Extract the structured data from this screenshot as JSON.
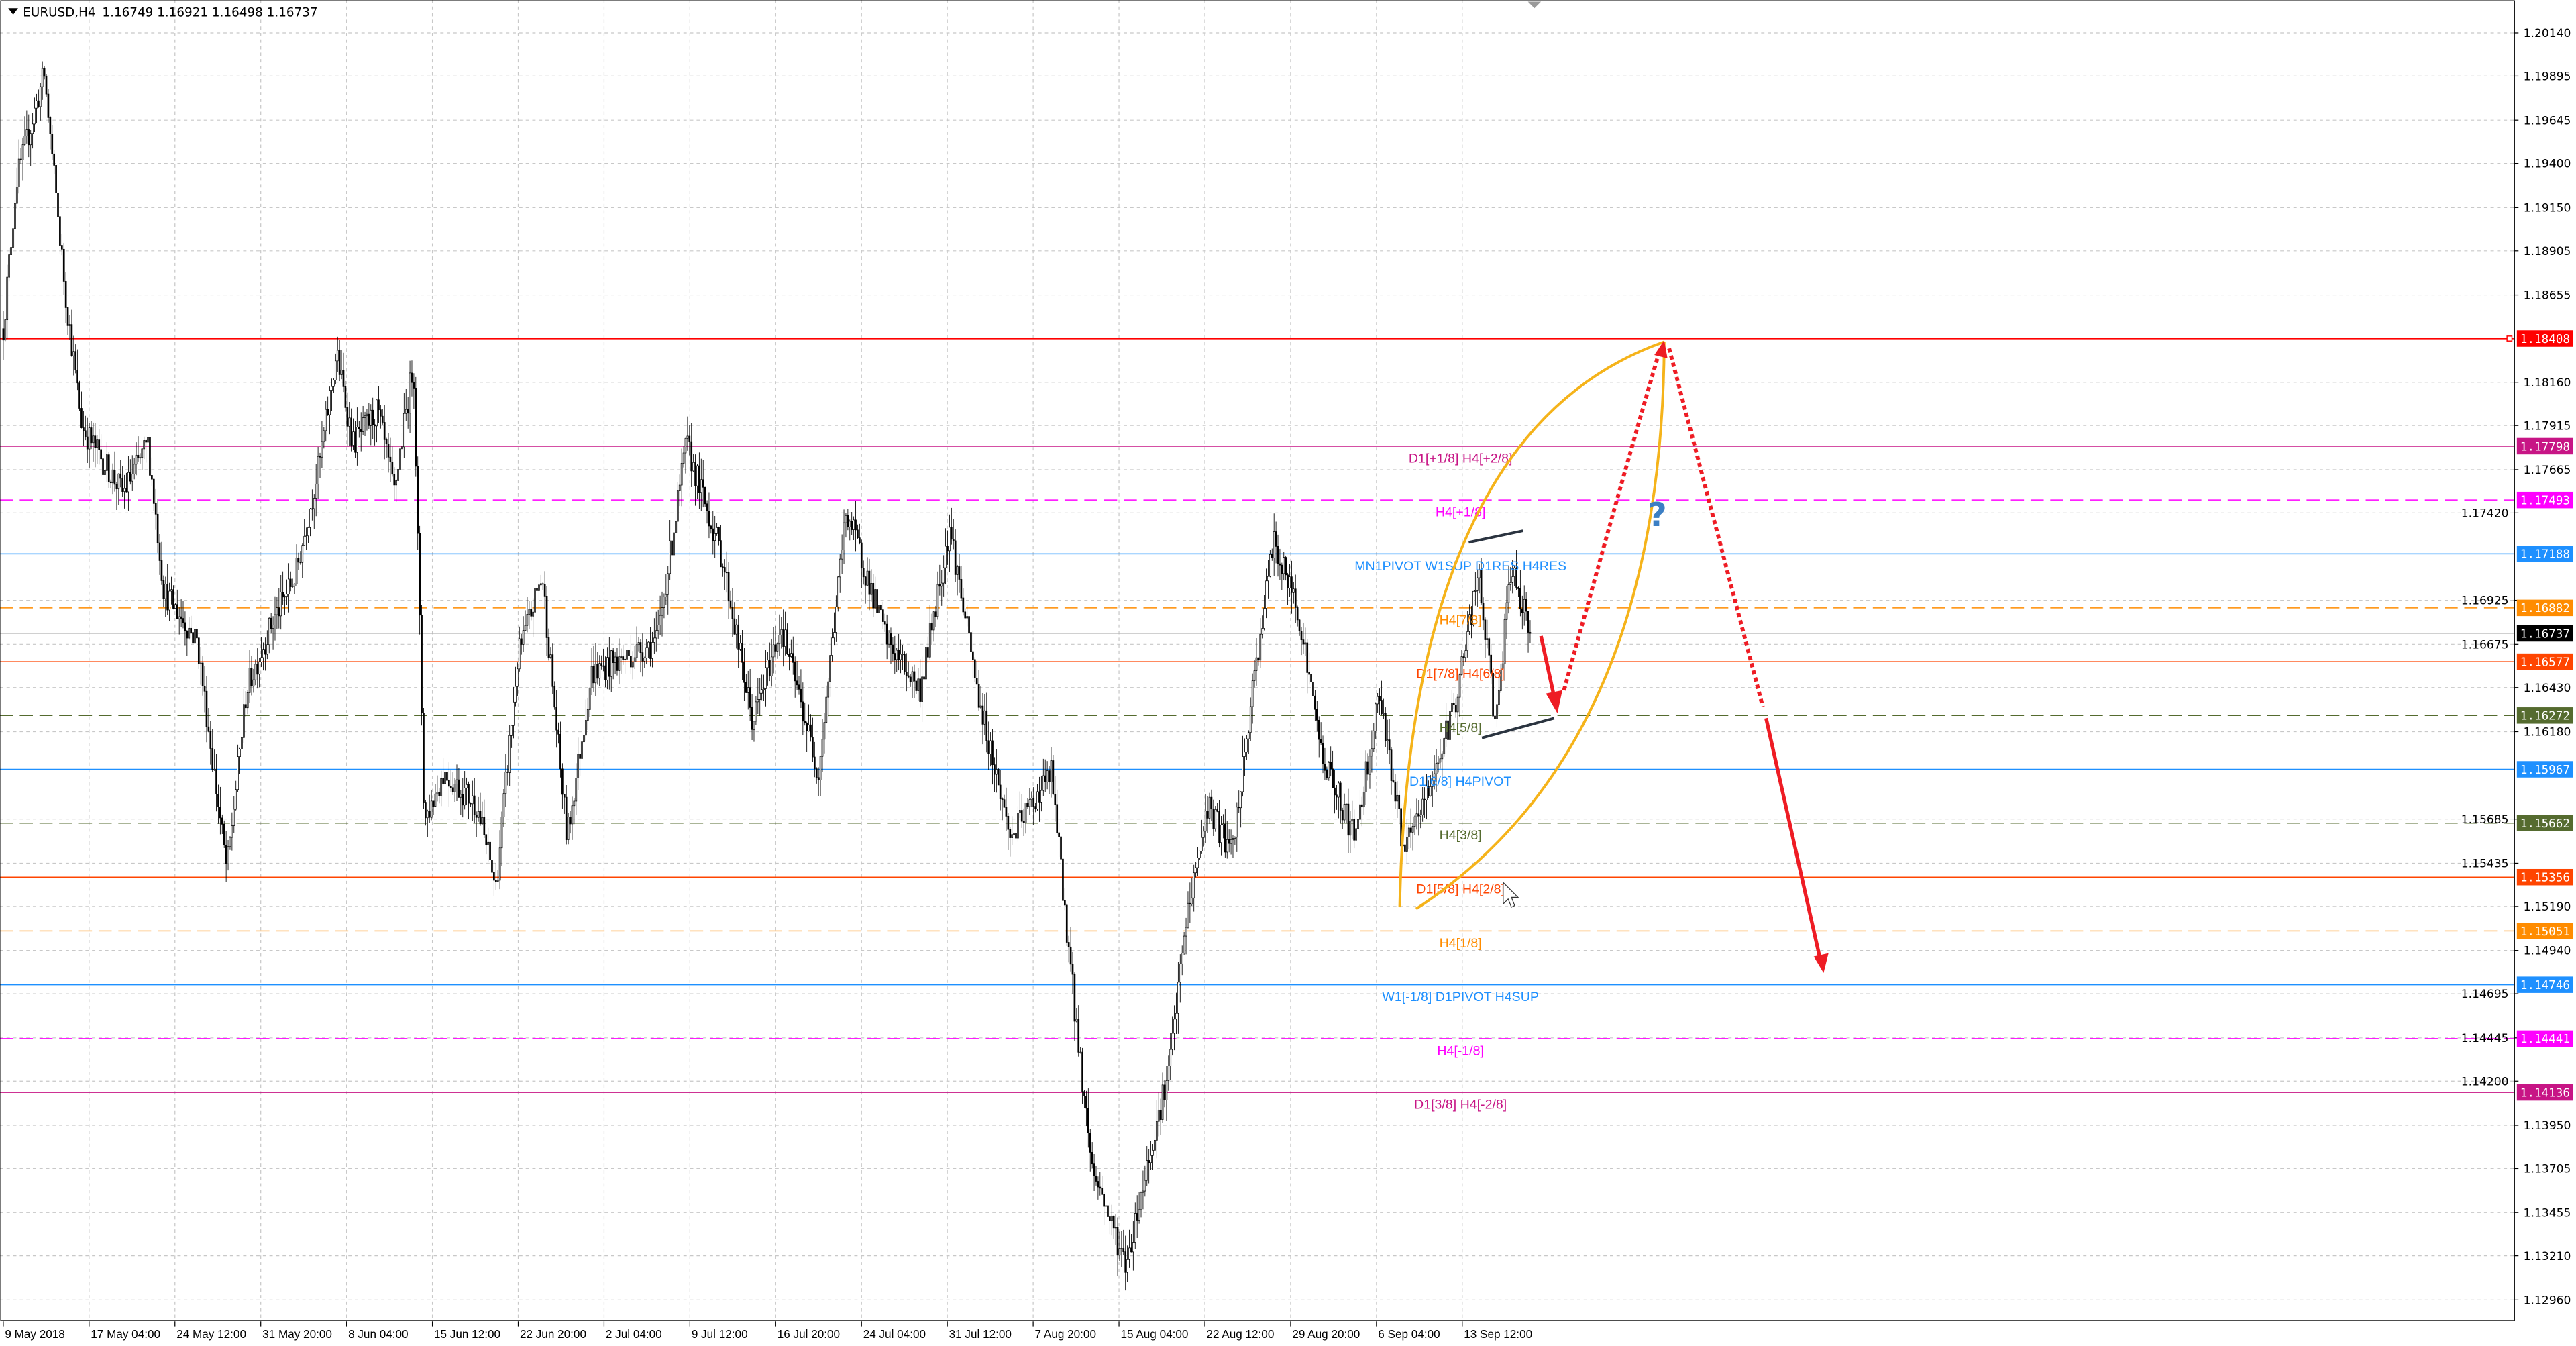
{
  "header": {
    "symbol": "EURUSD,H4",
    "ohlc": "1.16749 1.16921 1.16498 1.16737",
    "menu_icon": "triangle-down-icon"
  },
  "chart_data": {
    "type": "candlestick",
    "symbol": "EURUSD",
    "timeframe": "H4",
    "ylim": [
      1.1296,
      1.2014
    ],
    "price_ticks": [
      "1.20140",
      "1.19895",
      "1.19645",
      "1.19400",
      "1.19150",
      "1.18905",
      "1.18655",
      "1.18160",
      "1.17915",
      "1.17665",
      "1.17420",
      "1.16925",
      "1.16675",
      "1.16430",
      "1.16180",
      "1.15685",
      "1.15435",
      "1.15190",
      "1.14940",
      "1.14695",
      "1.14445",
      "1.14200",
      "1.13950",
      "1.13705",
      "1.13455",
      "1.13210",
      "1.12960"
    ],
    "time_ticks": [
      "9 May 2018",
      "17 May 04:00",
      "24 May 12:00",
      "31 May 20:00",
      "8 Jun 04:00",
      "15 Jun 12:00",
      "22 Jun 20:00",
      "2 Jul 04:00",
      "9 Jul 12:00",
      "16 Jul 20:00",
      "24 Jul 04:00",
      "31 Jul 12:00",
      "7 Aug 20:00",
      "15 Aug 04:00",
      "22 Aug 12:00",
      "29 Aug 20:00",
      "6 Sep 04:00",
      "13 Sep 12:00"
    ],
    "grid": true,
    "current_price": {
      "value": "1.16737",
      "color": "#000000"
    },
    "price_path": [
      [
        "2018-05-09T00:00",
        1.18464
      ],
      [
        "2018-05-10T03:00",
        1.19302
      ],
      [
        "2018-05-12T12:00",
        1.19907
      ],
      [
        "2018-05-14T08:00",
        1.1865
      ],
      [
        "2018-05-15T18:00",
        1.17905
      ],
      [
        "2018-05-19T06:00",
        1.17532
      ],
      [
        "2018-05-21T09:00",
        1.17812
      ],
      [
        "2018-05-22T18:00",
        1.16974
      ],
      [
        "2018-05-25T14:00",
        1.16694
      ],
      [
        "2018-05-28T03:00",
        1.15391
      ],
      [
        "2018-05-29T19:00",
        1.16415
      ],
      [
        "2018-05-31T22:00",
        1.16787
      ],
      [
        "2018-06-03T00:00",
        1.17067
      ],
      [
        "2018-06-05T02:00",
        1.17719
      ],
      [
        "2018-06-06T12:00",
        1.18324
      ],
      [
        "2018-06-07T22:00",
        1.17812
      ],
      [
        "2018-06-10T00:00",
        1.17998
      ],
      [
        "2018-06-11T10:00",
        1.17532
      ],
      [
        "2018-06-13T02:00",
        1.18277
      ],
      [
        "2018-06-14T00:00",
        1.1567
      ],
      [
        "2018-06-15T16:00",
        1.15949
      ],
      [
        "2018-06-18T12:00",
        1.15763
      ],
      [
        "2018-06-20T03:00",
        1.15297
      ],
      [
        "2018-06-22T00:00",
        1.16601
      ],
      [
        "2018-06-24T02:00",
        1.17067
      ],
      [
        "2018-06-26T05:00",
        1.15577
      ],
      [
        "2018-06-28T07:00",
        1.16508
      ],
      [
        "2018-07-01T03:00",
        1.16601
      ],
      [
        "2018-07-03T22:00",
        1.16694
      ],
      [
        "2018-07-06T10:00",
        1.17812
      ],
      [
        "2018-07-09T12:00",
        1.1716
      ],
      [
        "2018-07-12T02:00",
        1.16229
      ],
      [
        "2018-07-14T12:00",
        1.16787
      ],
      [
        "2018-07-17T17:00",
        1.15949
      ],
      [
        "2018-07-20T02:00",
        1.17439
      ],
      [
        "2018-07-23T14:00",
        1.16694
      ],
      [
        "2018-07-26T10:00",
        1.16415
      ],
      [
        "2018-07-28T22:00",
        1.17346
      ],
      [
        "2018-07-31T07:00",
        1.16415
      ],
      [
        "2018-08-03T03:00",
        1.15577
      ],
      [
        "2018-08-06T15:00",
        1.15949
      ],
      [
        "2018-08-08T17:00",
        1.14552
      ],
      [
        "2018-08-10T03:00",
        1.13714
      ],
      [
        "2018-08-13T00:00",
        1.13155
      ],
      [
        "2018-08-15T02:00",
        1.13807
      ],
      [
        "2018-08-16T17:00",
        1.14273
      ],
      [
        "2018-08-18T04:00",
        1.15111
      ],
      [
        "2018-08-20T00:00",
        1.15763
      ],
      [
        "2018-08-22T02:00",
        1.15484
      ],
      [
        "2018-08-24T05:00",
        1.16601
      ],
      [
        "2018-08-25T14:00",
        1.17253
      ],
      [
        "2018-08-27T17:00",
        1.16881
      ],
      [
        "2018-08-29T19:00",
        1.16042
      ],
      [
        "2018-09-01T14:00",
        1.15577
      ],
      [
        "2018-09-03T17:00",
        1.16415
      ],
      [
        "2018-09-05T19:00",
        1.15484
      ],
      [
        "2018-09-07T22:00",
        1.15856
      ],
      [
        "2018-09-10T02:00",
        1.16322
      ],
      [
        "2018-09-12T04:00",
        1.17067
      ],
      [
        "2018-09-13T14:00",
        1.16229
      ],
      [
        "2018-09-15T00:00",
        1.17114
      ],
      [
        "2018-09-16T17:00",
        1.16737
      ]
    ],
    "levels": [
      {
        "price": 1.18408,
        "tag": "1.18408",
        "label": "",
        "color": "#ff0000",
        "style": "solid"
      },
      {
        "price": 1.17798,
        "tag": "1.17798",
        "label": "D1[+1/8] H4[+2/8]",
        "color": "#c71585",
        "style": "solid"
      },
      {
        "price": 1.17493,
        "tag": "1.17493",
        "label": "H4[+1/8]",
        "color": "#ff00ff",
        "style": "dashed"
      },
      {
        "price": 1.17188,
        "tag": "1.17188",
        "label": "MN1PIVOT W1SUP D1RES H4RES",
        "color": "#1e90ff",
        "style": "solid"
      },
      {
        "price": 1.16882,
        "tag": "1.16882",
        "label": "H4[7/8]",
        "color": "#ff8c00",
        "style": "dashed"
      },
      {
        "price": 1.16577,
        "tag": "1.16577",
        "label": "D1[7/8] H4[6/8]",
        "color": "#ff4500",
        "style": "solid"
      },
      {
        "price": 1.16272,
        "tag": "1.16272",
        "label": "H4[5/8]",
        "color": "#556b2f",
        "style": "dashed"
      },
      {
        "price": 1.15967,
        "tag": "1.15967",
        "label": "D1[6/8] H4PIVOT",
        "color": "#1e90ff",
        "style": "solid"
      },
      {
        "price": 1.15662,
        "tag": "1.15662",
        "label": "H4[3/8]",
        "color": "#556b2f",
        "style": "dashed"
      },
      {
        "price": 1.15356,
        "tag": "1.15356",
        "label": "D1[5/8] H4[2/8]",
        "color": "#ff4500",
        "style": "solid"
      },
      {
        "price": 1.15051,
        "tag": "1.15051",
        "label": "H4[1/8]",
        "color": "#ff8c00",
        "style": "dashed"
      },
      {
        "price": 1.14746,
        "tag": "1.14746",
        "label": "W1[-1/8] D1PIVOT H4SUP",
        "color": "#1e90ff",
        "style": "solid"
      },
      {
        "price": 1.14441,
        "tag": "1.14441",
        "label": "H4[-1/8]",
        "color": "#ff00ff",
        "style": "dashed"
      },
      {
        "price": 1.14136,
        "tag": "1.14136",
        "label": "D1[3/8] H4[-2/8]",
        "color": "#c71585",
        "style": "solid"
      }
    ],
    "annotations": {
      "question_mark": "?",
      "arc_color": "#f5b31a",
      "arrow_color": "#ee1c24",
      "trendline_color": "#2b3440",
      "question_color": "#3c7fc4"
    }
  }
}
